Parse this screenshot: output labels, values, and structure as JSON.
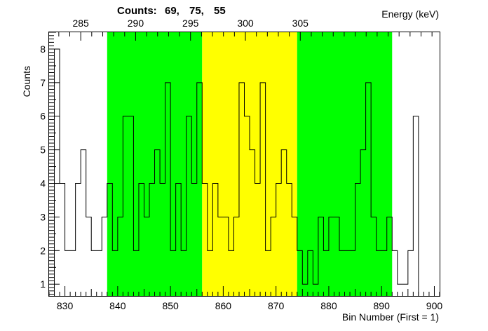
{
  "chart_data": {
    "type": "step-histogram",
    "counts_label": "Counts:",
    "counts_values": [
      "69,",
      "75,",
      "55"
    ],
    "xlabel": "Bin Number (First = 1)",
    "ylabel": "Counts",
    "top_axis_label": "Energy (keV)",
    "xlim": [
      827,
      901
    ],
    "ylim": [
      0.65,
      8.5
    ],
    "x_ticks": [
      830,
      840,
      850,
      860,
      870,
      880,
      890,
      900
    ],
    "y_ticks": [
      1,
      2,
      3,
      4,
      5,
      6,
      7,
      8
    ],
    "top_ticks": [
      {
        "bin": 833.0,
        "label": "285"
      },
      {
        "bin": 843.4,
        "label": "290"
      },
      {
        "bin": 853.8,
        "label": "295"
      },
      {
        "bin": 864.2,
        "label": "300"
      },
      {
        "bin": 874.6,
        "label": "305"
      }
    ],
    "regions": [
      {
        "name": "left-background",
        "from": 838,
        "to": 856,
        "color": "#00ff00"
      },
      {
        "name": "peak",
        "from": 856,
        "to": 874,
        "color": "#ffff00"
      },
      {
        "name": "right-background",
        "from": 874,
        "to": 892,
        "color": "#00ff00"
      }
    ],
    "bin_start": 828,
    "bin_width": 1,
    "values": [
      8,
      4,
      2,
      2,
      4,
      5,
      3,
      2,
      2,
      3,
      4,
      2,
      3,
      6,
      6,
      2,
      4,
      3,
      4,
      5,
      4,
      7,
      2,
      4,
      2,
      6,
      4,
      7,
      4,
      2,
      4,
      3,
      3,
      2,
      3,
      7,
      6,
      5,
      4,
      7,
      2,
      3,
      4,
      5,
      4,
      3,
      2,
      1,
      2,
      1,
      3,
      2,
      3,
      3,
      2,
      2,
      2,
      4,
      5,
      7,
      3,
      2,
      2,
      3,
      2,
      1,
      1,
      2,
      6
    ]
  }
}
